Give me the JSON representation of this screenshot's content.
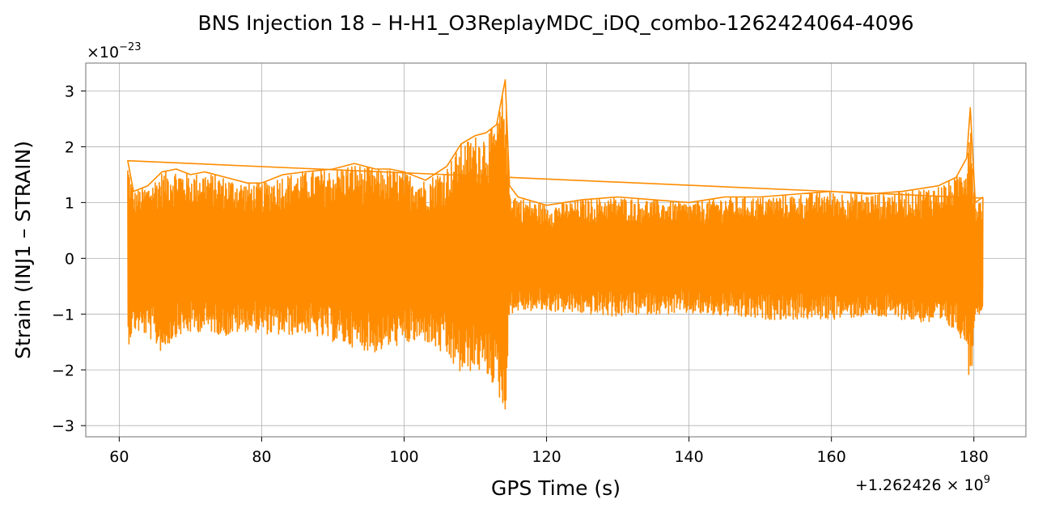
{
  "chart_data": {
    "type": "line",
    "title": "BNS Injection 18 – H-H1_O3ReplayMDC_iDQ_combo-1262424064-4096",
    "xlabel": "GPS Time (s)",
    "ylabel": "Strain (INJ1 – STRAIN)",
    "x_offset_label": "+1.262426 × 10",
    "x_offset_exponent": "9",
    "y_scale_label": "×10",
    "y_scale_exponent": "−23",
    "xlim": [
      55.3,
      187.3
    ],
    "ylim": [
      -3.2,
      3.5
    ],
    "x_ticks": [
      60,
      80,
      100,
      120,
      140,
      160,
      180
    ],
    "x_tick_labels": [
      "60",
      "80",
      "100",
      "120",
      "140",
      "160",
      "180"
    ],
    "y_ticks": [
      -3,
      -2,
      -1,
      0,
      1,
      2,
      3
    ],
    "y_tick_labels": [
      "−3",
      "−2",
      "−1",
      "0",
      "1",
      "2",
      "3"
    ],
    "grid": true,
    "color": "#ff8c00",
    "series": [
      {
        "x_range": [
          61.2,
          181.3
        ],
        "envelope_upper": [
          [
            61.2,
            1.75
          ],
          [
            62.0,
            1.2
          ],
          [
            64.0,
            1.3
          ],
          [
            66.0,
            1.55
          ],
          [
            68.0,
            1.6
          ],
          [
            70.0,
            1.5
          ],
          [
            72.0,
            1.55
          ],
          [
            75.0,
            1.45
          ],
          [
            78.0,
            1.35
          ],
          [
            80.0,
            1.35
          ],
          [
            83.0,
            1.5
          ],
          [
            86.0,
            1.55
          ],
          [
            90.0,
            1.6
          ],
          [
            93.0,
            1.7
          ],
          [
            96.0,
            1.6
          ],
          [
            98.0,
            1.6
          ],
          [
            100.0,
            1.55
          ],
          [
            103.0,
            1.4
          ],
          [
            106.0,
            1.65
          ],
          [
            108.0,
            2.05
          ],
          [
            110.0,
            2.2
          ],
          [
            111.5,
            2.25
          ],
          [
            113.0,
            2.4
          ],
          [
            114.2,
            3.2
          ],
          [
            114.8,
            1.3
          ],
          [
            116.0,
            1.1
          ],
          [
            120.0,
            0.95
          ],
          [
            125.0,
            1.05
          ],
          [
            130.0,
            1.1
          ],
          [
            135.0,
            1.05
          ],
          [
            140.0,
            1.0
          ],
          [
            145.0,
            1.1
          ],
          [
            150.0,
            1.1
          ],
          [
            155.0,
            1.15
          ],
          [
            160.0,
            1.2
          ],
          [
            165.0,
            1.15
          ],
          [
            170.0,
            1.2
          ],
          [
            175.0,
            1.3
          ],
          [
            177.5,
            1.45
          ],
          [
            179.0,
            1.8
          ],
          [
            179.5,
            2.7
          ],
          [
            180.2,
            1.0
          ],
          [
            181.3,
            1.1
          ]
        ],
        "envelope_lower": [
          [
            61.2,
            -1.6
          ],
          [
            62.0,
            -1.3
          ],
          [
            64.0,
            -1.4
          ],
          [
            66.0,
            -1.7
          ],
          [
            68.0,
            -1.4
          ],
          [
            70.0,
            -1.35
          ],
          [
            72.0,
            -1.3
          ],
          [
            75.0,
            -1.4
          ],
          [
            78.0,
            -1.3
          ],
          [
            80.0,
            -1.35
          ],
          [
            83.0,
            -1.4
          ],
          [
            86.0,
            -1.35
          ],
          [
            90.0,
            -1.5
          ],
          [
            93.0,
            -1.6
          ],
          [
            96.0,
            -1.7
          ],
          [
            98.0,
            -1.6
          ],
          [
            100.0,
            -1.55
          ],
          [
            103.0,
            -1.5
          ],
          [
            106.0,
            -1.8
          ],
          [
            108.0,
            -2.1
          ],
          [
            110.0,
            -2.0
          ],
          [
            111.5,
            -2.1
          ],
          [
            113.0,
            -2.35
          ],
          [
            114.2,
            -2.9
          ],
          [
            114.8,
            -1.0
          ],
          [
            116.0,
            -0.95
          ],
          [
            120.0,
            -0.95
          ],
          [
            125.0,
            -1.0
          ],
          [
            130.0,
            -1.05
          ],
          [
            135.0,
            -1.0
          ],
          [
            140.0,
            -1.0
          ],
          [
            145.0,
            -1.05
          ],
          [
            150.0,
            -1.1
          ],
          [
            155.0,
            -1.1
          ],
          [
            160.0,
            -1.1
          ],
          [
            165.0,
            -1.05
          ],
          [
            170.0,
            -1.1
          ],
          [
            175.0,
            -1.2
          ],
          [
            177.5,
            -1.3
          ],
          [
            179.0,
            -1.6
          ],
          [
            179.5,
            -2.45
          ],
          [
            180.2,
            -1.0
          ],
          [
            181.3,
            -1.0
          ]
        ]
      }
    ]
  }
}
